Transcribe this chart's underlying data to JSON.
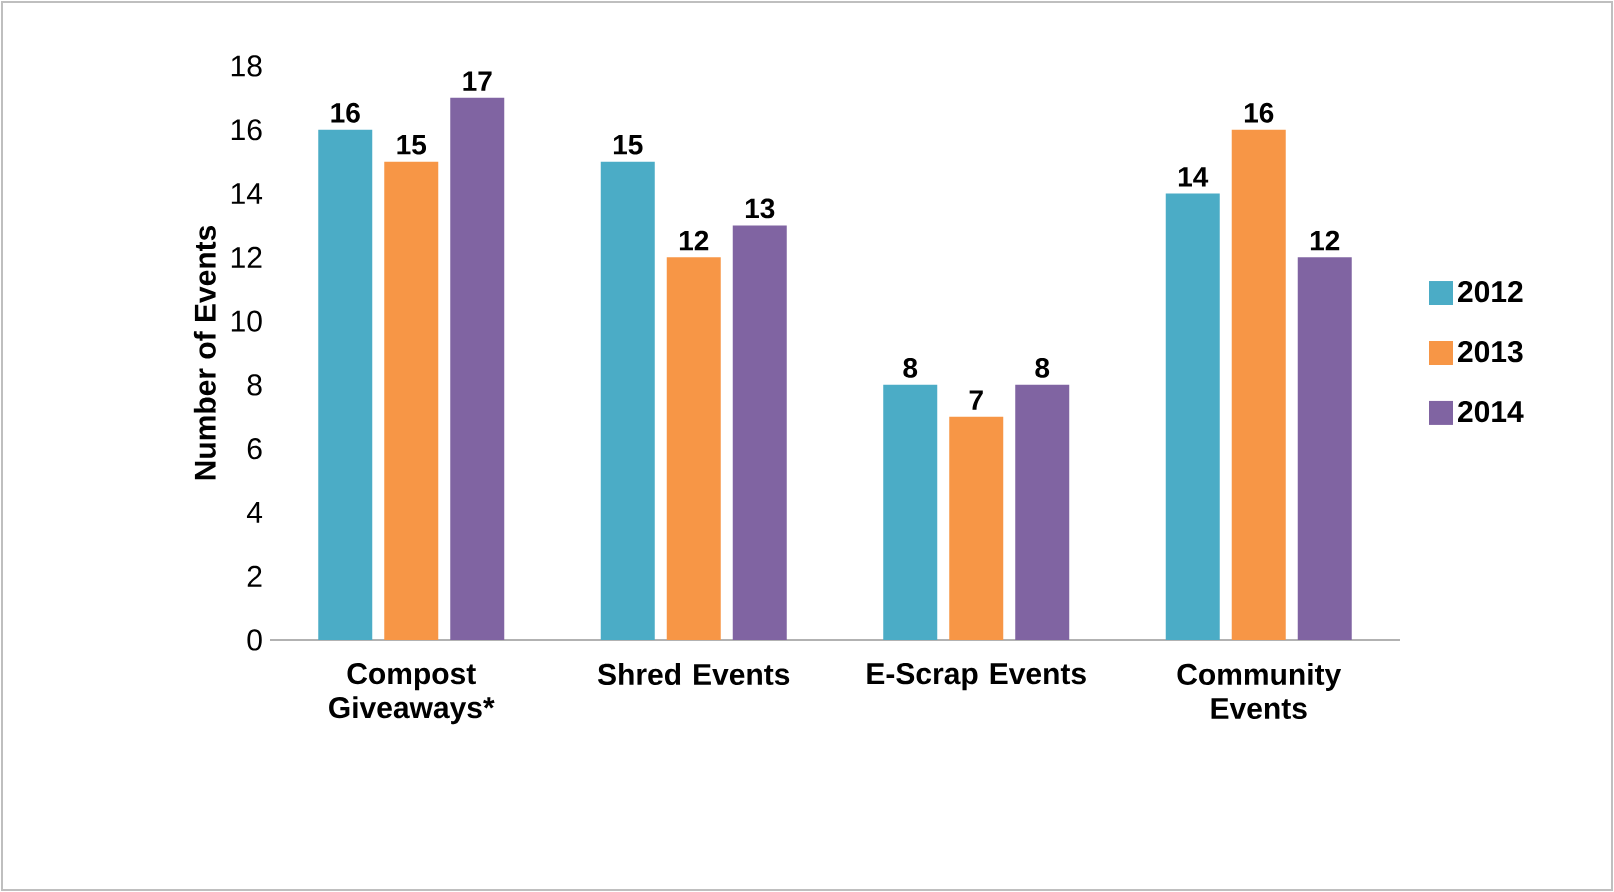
{
  "chart_data": {
    "type": "bar",
    "ylabel": "Number of Events",
    "categories": [
      "Compost Giveaways*",
      "Shred Events",
      "E-Scrap Events",
      "Community Events"
    ],
    "series": [
      {
        "name": "2012",
        "color": "#4bacc6",
        "values": [
          16,
          15,
          8,
          14
        ]
      },
      {
        "name": "2013",
        "color": "#f79646",
        "values": [
          15,
          12,
          7,
          16
        ]
      },
      {
        "name": "2014",
        "color": "#8064a2",
        "values": [
          17,
          13,
          8,
          12
        ]
      }
    ],
    "ylim": [
      0,
      18
    ],
    "yticks": [
      0,
      2,
      4,
      6,
      8,
      10,
      12,
      14,
      16,
      18
    ],
    "data_labels": true,
    "grid": false,
    "legend": "right"
  }
}
